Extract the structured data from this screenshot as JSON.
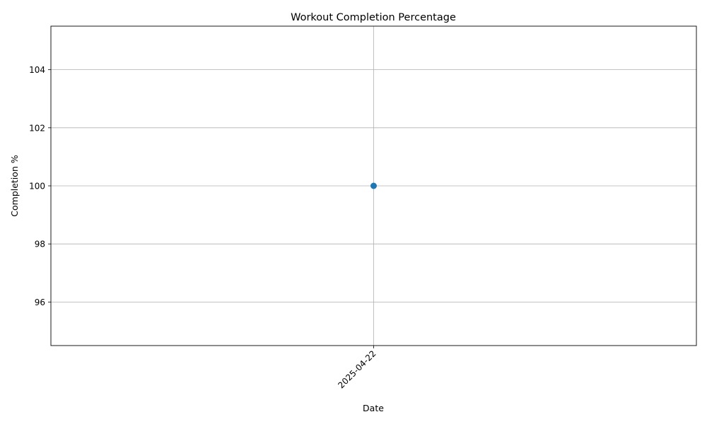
{
  "chart_data": {
    "type": "line",
    "title": "Workout Completion Percentage",
    "xlabel": "Date",
    "ylabel": "Completion %",
    "x_categories": [
      "2025-04-22"
    ],
    "series": [
      {
        "values": [
          100
        ],
        "color": "#1f77b4",
        "marker": "circle"
      }
    ],
    "ylim": [
      94.5,
      105.5
    ],
    "yticks": [
      96,
      98,
      100,
      102,
      104
    ],
    "grid": true
  }
}
